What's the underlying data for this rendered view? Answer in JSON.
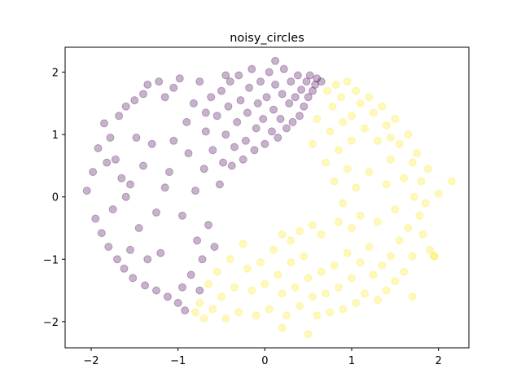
{
  "chart_data": {
    "type": "scatter",
    "title": "noisy_circles",
    "xlabel": "",
    "ylabel": "",
    "xlim": [
      -2.3,
      2.35
    ],
    "ylim": [
      -2.42,
      2.4
    ],
    "xticks": [
      -2,
      -1,
      0,
      1,
      2
    ],
    "yticks": [
      -2,
      -1,
      0,
      1,
      2
    ],
    "xtick_labels": [
      "−2",
      "−1",
      "0",
      "1",
      "2"
    ],
    "ytick_labels": [
      "−2",
      "−1",
      "0",
      "1",
      "2"
    ],
    "grid": false,
    "legend": "none",
    "marker_alpha": 0.3,
    "colors": {
      "cluster_0": "#440154",
      "cluster_1": "#fde725"
    },
    "series": [
      {
        "cluster": 0,
        "color": "#440154",
        "points": [
          [
            -2.05,
            0.1
          ],
          [
            -1.98,
            0.4
          ],
          [
            -1.95,
            -0.35
          ],
          [
            -1.92,
            0.78
          ],
          [
            -1.88,
            -0.58
          ],
          [
            -1.85,
            1.18
          ],
          [
            -1.8,
            -0.8
          ],
          [
            -1.78,
            0.95
          ],
          [
            -1.75,
            -0.2
          ],
          [
            -1.72,
            0.6
          ],
          [
            -1.7,
            -1.0
          ],
          [
            -1.68,
            1.3
          ],
          [
            -1.62,
            -1.15
          ],
          [
            -1.6,
            1.45
          ],
          [
            -1.55,
            0.2
          ],
          [
            -1.52,
            -1.3
          ],
          [
            -1.5,
            1.55
          ],
          [
            -1.45,
            -0.5
          ],
          [
            -1.4,
            1.65
          ],
          [
            -1.38,
            -1.42
          ],
          [
            -1.35,
            1.8
          ],
          [
            -1.3,
            0.85
          ],
          [
            -1.25,
            -1.5
          ],
          [
            -1.22,
            1.85
          ],
          [
            -1.2,
            -0.9
          ],
          [
            -1.15,
            1.6
          ],
          [
            -1.12,
            -1.6
          ],
          [
            -1.1,
            0.4
          ],
          [
            -1.05,
            1.75
          ],
          [
            -1.0,
            -1.7
          ],
          [
            -0.98,
            1.9
          ],
          [
            -0.95,
            -0.3
          ],
          [
            -0.92,
            -1.82
          ],
          [
            -0.9,
            1.2
          ],
          [
            -0.88,
            0.7
          ],
          [
            -0.85,
            -1.25
          ],
          [
            -0.82,
            1.5
          ],
          [
            -0.8,
            0.1
          ],
          [
            -0.78,
            -0.7
          ],
          [
            -0.75,
            1.85
          ],
          [
            -0.72,
            -1.0
          ],
          [
            -0.7,
            0.45
          ],
          [
            -0.68,
            1.05
          ],
          [
            -0.65,
            -0.45
          ],
          [
            -0.62,
            1.6
          ],
          [
            -0.6,
            0.75
          ],
          [
            -0.58,
            -0.8
          ],
          [
            -0.55,
            1.3
          ],
          [
            -0.52,
            0.2
          ],
          [
            -0.5,
            1.7
          ],
          [
            -0.48,
            0.55
          ],
          [
            -0.45,
            1.0
          ],
          [
            -0.42,
            1.45
          ],
          [
            -0.4,
            1.85
          ],
          [
            -0.38,
            0.5
          ],
          [
            -0.35,
            0.8
          ],
          [
            -0.32,
            1.2
          ],
          [
            -0.3,
            1.95
          ],
          [
            -0.28,
            1.55
          ],
          [
            -0.25,
            0.6
          ],
          [
            -0.22,
            0.9
          ],
          [
            -0.2,
            1.35
          ],
          [
            -0.18,
            1.75
          ],
          [
            -0.15,
            2.05
          ],
          [
            -0.12,
            0.75
          ],
          [
            -0.1,
            1.1
          ],
          [
            -0.08,
            1.5
          ],
          [
            -0.05,
            1.85
          ],
          [
            -0.02,
            1.25
          ],
          [
            0.0,
            0.85
          ],
          [
            0.02,
            1.6
          ],
          [
            0.05,
            2.0
          ],
          [
            0.08,
            1.05
          ],
          [
            0.1,
            1.4
          ],
          [
            0.12,
            1.8
          ],
          [
            0.15,
            0.95
          ],
          [
            0.18,
            1.25
          ],
          [
            0.2,
            1.65
          ],
          [
            0.22,
            2.05
          ],
          [
            0.25,
            1.1
          ],
          [
            0.28,
            1.5
          ],
          [
            0.3,
            1.85
          ],
          [
            0.32,
            1.2
          ],
          [
            0.35,
            1.6
          ],
          [
            0.38,
            1.95
          ],
          [
            0.4,
            1.3
          ],
          [
            0.42,
            1.72
          ],
          [
            0.45,
            1.45
          ],
          [
            0.48,
            1.85
          ],
          [
            0.5,
            1.6
          ],
          [
            0.52,
            1.95
          ],
          [
            0.55,
            1.7
          ],
          [
            0.58,
            1.8
          ],
          [
            0.6,
            1.9
          ],
          [
            0.65,
            1.85
          ],
          [
            0.12,
            2.18
          ],
          [
            -0.45,
            1.95
          ],
          [
            -1.48,
            0.95
          ],
          [
            -1.65,
            0.3
          ],
          [
            -1.25,
            -0.25
          ],
          [
            -1.05,
            0.9
          ],
          [
            -0.75,
            -1.5
          ],
          [
            -1.35,
            -1.0
          ],
          [
            -1.55,
            -0.85
          ],
          [
            -1.15,
            0.15
          ],
          [
            -0.95,
            -1.45
          ],
          [
            -1.82,
            0.55
          ],
          [
            -1.6,
            0.0
          ],
          [
            -1.4,
            0.5
          ],
          [
            -0.68,
            1.35
          ]
        ]
      },
      {
        "cluster": 1,
        "color": "#fde725",
        "points": [
          [
            0.72,
            1.7
          ],
          [
            0.78,
            1.45
          ],
          [
            0.82,
            1.8
          ],
          [
            0.88,
            1.6
          ],
          [
            0.95,
            1.85
          ],
          [
            1.0,
            1.3
          ],
          [
            1.05,
            1.7
          ],
          [
            1.1,
            1.5
          ],
          [
            1.15,
            1.1
          ],
          [
            1.2,
            1.6
          ],
          [
            1.25,
            1.35
          ],
          [
            1.3,
            0.9
          ],
          [
            1.35,
            1.45
          ],
          [
            1.4,
            1.15
          ],
          [
            1.45,
            0.6
          ],
          [
            1.5,
            1.25
          ],
          [
            1.55,
            0.85
          ],
          [
            1.6,
            0.3
          ],
          [
            1.65,
            1.0
          ],
          [
            1.7,
            0.55
          ],
          [
            1.72,
            0.0
          ],
          [
            1.75,
            0.7
          ],
          [
            1.78,
            -0.3
          ],
          [
            1.8,
            0.25
          ],
          [
            1.82,
            -0.6
          ],
          [
            1.85,
            -0.1
          ],
          [
            1.88,
            0.45
          ],
          [
            1.9,
            -0.85
          ],
          [
            1.95,
            -0.95
          ],
          [
            2.15,
            0.25
          ],
          [
            2.0,
            0.05
          ],
          [
            1.7,
            -0.95
          ],
          [
            1.65,
            -0.5
          ],
          [
            1.6,
            -1.2
          ],
          [
            1.55,
            -0.7
          ],
          [
            1.5,
            -1.35
          ],
          [
            1.45,
            -0.95
          ],
          [
            1.4,
            -1.5
          ],
          [
            1.35,
            -1.1
          ],
          [
            1.3,
            -1.65
          ],
          [
            1.25,
            -1.25
          ],
          [
            1.2,
            -0.8
          ],
          [
            1.15,
            -1.55
          ],
          [
            1.1,
            -1.05
          ],
          [
            1.05,
            -1.7
          ],
          [
            1.0,
            -1.3
          ],
          [
            0.95,
            -0.9
          ],
          [
            0.9,
            -1.8
          ],
          [
            0.85,
            -1.45
          ],
          [
            0.8,
            -1.1
          ],
          [
            0.75,
            -1.85
          ],
          [
            0.7,
            -1.55
          ],
          [
            0.65,
            -1.2
          ],
          [
            0.6,
            -1.9
          ],
          [
            0.55,
            -1.6
          ],
          [
            0.5,
            -1.3
          ],
          [
            0.45,
            -0.95
          ],
          [
            0.4,
            -1.75
          ],
          [
            0.35,
            -1.45
          ],
          [
            0.3,
            -1.05
          ],
          [
            0.25,
            -1.9
          ],
          [
            0.2,
            -1.55
          ],
          [
            0.15,
            -1.25
          ],
          [
            0.1,
            -0.85
          ],
          [
            0.05,
            -1.8
          ],
          [
            0.0,
            -1.4
          ],
          [
            -0.05,
            -1.05
          ],
          [
            -0.1,
            -1.9
          ],
          [
            -0.15,
            -1.5
          ],
          [
            -0.2,
            -1.15
          ],
          [
            -0.25,
            -0.75
          ],
          [
            -0.3,
            -1.85
          ],
          [
            -0.35,
            -1.45
          ],
          [
            -0.4,
            -1.0
          ],
          [
            -0.45,
            -1.95
          ],
          [
            -0.5,
            -1.6
          ],
          [
            -0.55,
            -1.2
          ],
          [
            -0.6,
            -1.8
          ],
          [
            -0.65,
            -1.4
          ],
          [
            -0.7,
            -1.95
          ],
          [
            -0.75,
            -1.7
          ],
          [
            -0.8,
            -1.85
          ],
          [
            0.2,
            -2.1
          ],
          [
            0.5,
            -2.2
          ],
          [
            1.7,
            -1.6
          ],
          [
            1.95,
            -0.95
          ],
          [
            0.55,
            0.85
          ],
          [
            0.6,
            1.25
          ],
          [
            0.7,
            0.55
          ],
          [
            0.75,
            1.05
          ],
          [
            0.8,
            0.25
          ],
          [
            0.85,
            0.75
          ],
          [
            0.9,
            -0.1
          ],
          [
            0.95,
            0.45
          ],
          [
            1.0,
            -0.5
          ],
          [
            1.05,
            0.15
          ],
          [
            1.1,
            -0.3
          ],
          [
            1.0,
            0.9
          ],
          [
            0.9,
            1.2
          ],
          [
            0.65,
            -0.6
          ],
          [
            0.55,
            -0.45
          ],
          [
            0.4,
            -0.55
          ],
          [
            0.3,
            -0.7
          ],
          [
            0.2,
            -0.6
          ],
          [
            0.85,
            -0.4
          ],
          [
            1.2,
            0.4
          ],
          [
            1.3,
            -0.4
          ],
          [
            1.4,
            0.2
          ],
          [
            1.5,
            -0.2
          ],
          [
            1.45,
            0.95
          ]
        ]
      }
    ]
  }
}
